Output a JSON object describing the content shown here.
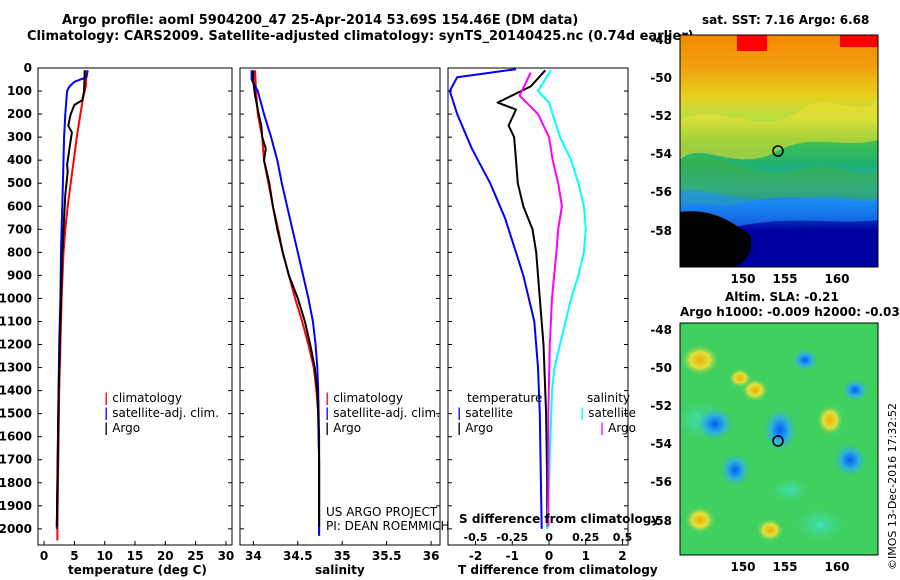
{
  "header": {
    "title_line1": "Argo profile: aoml 5904200_47 25-Apr-2014 53.69S 154.46E (DM data)",
    "title_line2": "Climatology: CARS2009. Satellite-adjusted climatology: synTS_20140425.nc (0.74d earlier)"
  },
  "colors": {
    "climatology": "#ff0000",
    "satellite": "#0000ff",
    "argo": "#000000",
    "sat_salinity": "#00ffff",
    "argo_salinity": "#ff00ff"
  },
  "watermark": "©IMOS 13-Dec-2016 17:32:52",
  "credits": {
    "line1": "US ARGO PROJECT",
    "line2": "PI: DEAN ROEMMICH"
  },
  "legends": {
    "temperature": [
      "climatology",
      "satellite-adj. clim.",
      "Argo"
    ],
    "salinity": [
      "climatology",
      "satellite-adj. clim.",
      "Argo"
    ],
    "diff_temperature": {
      "heading": "temperature",
      "items": [
        "satellite",
        "Argo"
      ]
    },
    "diff_salinity": {
      "heading": "salinity",
      "items": [
        "satellite",
        "Argo"
      ]
    }
  },
  "maps": {
    "sst": {
      "title": "sat. SST: 7.16 Argo: 6.68",
      "xticks": [
        "150",
        "155",
        "160"
      ],
      "yticks": [
        "-48",
        "-50",
        "-52",
        "-54",
        "-56",
        "-58"
      ]
    },
    "sla": {
      "title1": "Altim. SLA: -0.21",
      "title2": "Argo h1000: -0.009 h2000: -0.03",
      "xticks": [
        "150",
        "155",
        "160"
      ],
      "yticks": [
        "-48",
        "-50",
        "-52",
        "-54",
        "-56",
        "-58"
      ]
    }
  },
  "chart_data": [
    {
      "type": "line",
      "id": "temperature",
      "xlabel": "temperature (deg C)",
      "ylabel": "",
      "xlim": [
        -1,
        31
      ],
      "ylim": [
        2070,
        0
      ],
      "xticks": [
        0,
        5,
        10,
        15,
        20,
        25,
        30
      ],
      "yticks": [
        0,
        100,
        200,
        300,
        400,
        500,
        600,
        700,
        800,
        900,
        1000,
        1100,
        1200,
        1300,
        1400,
        1500,
        1600,
        1700,
        1800,
        1900,
        2000
      ],
      "series": [
        {
          "name": "climatology",
          "color": "#ff0000",
          "points": [
            [
              7.0,
              10
            ],
            [
              6.9,
              80
            ],
            [
              6.5,
              120
            ],
            [
              6.0,
              200
            ],
            [
              5.4,
              300
            ],
            [
              4.9,
              400
            ],
            [
              4.4,
              500
            ],
            [
              3.9,
              600
            ],
            [
              3.5,
              700
            ],
            [
              3.2,
              800
            ],
            [
              2.9,
              1000
            ],
            [
              2.7,
              1200
            ],
            [
              2.5,
              1400
            ],
            [
              2.4,
              1600
            ],
            [
              2.3,
              1800
            ],
            [
              2.2,
              2000
            ],
            [
              2.2,
              2050
            ]
          ]
        },
        {
          "name": "satellite-adj. clim.",
          "color": "#0000ff",
          "points": [
            [
              7.2,
              10
            ],
            [
              7.0,
              40
            ],
            [
              5.0,
              60
            ],
            [
              4.2,
              80
            ],
            [
              3.8,
              100
            ],
            [
              3.5,
              200
            ],
            [
              3.3,
              300
            ],
            [
              3.2,
              400
            ],
            [
              3.1,
              500
            ],
            [
              3.0,
              600
            ],
            [
              2.9,
              700
            ],
            [
              2.8,
              800
            ],
            [
              2.7,
              1000
            ],
            [
              2.5,
              1200
            ],
            [
              2.4,
              1400
            ],
            [
              2.3,
              1600
            ],
            [
              2.2,
              1800
            ],
            [
              2.1,
              2000
            ]
          ]
        },
        {
          "name": "Argo",
          "color": "#000000",
          "points": [
            [
              6.7,
              10
            ],
            [
              6.6,
              100
            ],
            [
              6.3,
              140
            ],
            [
              5.0,
              160
            ],
            [
              4.4,
              200
            ],
            [
              4.0,
              250
            ],
            [
              4.6,
              280
            ],
            [
              4.3,
              330
            ],
            [
              3.8,
              420
            ],
            [
              3.9,
              450
            ],
            [
              3.5,
              550
            ],
            [
              3.4,
              600
            ],
            [
              3.2,
              700
            ],
            [
              3.0,
              800
            ],
            [
              2.8,
              1000
            ],
            [
              2.6,
              1200
            ],
            [
              2.4,
              1400
            ],
            [
              2.3,
              1600
            ],
            [
              2.2,
              1800
            ],
            [
              2.1,
              1990
            ]
          ]
        }
      ]
    },
    {
      "type": "line",
      "id": "salinity",
      "xlabel": "salinity",
      "ylabel": "",
      "xlim": [
        33.85,
        36.1
      ],
      "ylim": [
        2070,
        0
      ],
      "xticks": [
        34,
        34.5,
        35,
        35.5,
        36
      ],
      "series": [
        {
          "name": "climatology",
          "color": "#ff0000",
          "points": [
            [
              34.02,
              10
            ],
            [
              34.03,
              100
            ],
            [
              34.05,
              200
            ],
            [
              34.1,
              300
            ],
            [
              34.12,
              400
            ],
            [
              34.17,
              500
            ],
            [
              34.22,
              600
            ],
            [
              34.28,
              700
            ],
            [
              34.33,
              800
            ],
            [
              34.4,
              900
            ],
            [
              34.47,
              1000
            ],
            [
              34.55,
              1100
            ],
            [
              34.62,
              1200
            ],
            [
              34.68,
              1300
            ],
            [
              34.71,
              1400
            ],
            [
              34.73,
              1500
            ],
            [
              34.74,
              1700
            ],
            [
              34.74,
              2030
            ]
          ]
        },
        {
          "name": "satellite-adj. clim.",
          "color": "#0000ff",
          "points": [
            [
              33.98,
              10
            ],
            [
              33.98,
              50
            ],
            [
              34.05,
              100
            ],
            [
              34.12,
              200
            ],
            [
              34.2,
              300
            ],
            [
              34.27,
              400
            ],
            [
              34.32,
              500
            ],
            [
              34.38,
              600
            ],
            [
              34.44,
              700
            ],
            [
              34.5,
              800
            ],
            [
              34.56,
              900
            ],
            [
              34.62,
              1000
            ],
            [
              34.67,
              1100
            ],
            [
              34.7,
              1200
            ],
            [
              34.72,
              1300
            ],
            [
              34.73,
              1400
            ],
            [
              34.74,
              1600
            ],
            [
              34.74,
              2030
            ]
          ]
        },
        {
          "name": "Argo",
          "color": "#000000",
          "points": [
            [
              34.0,
              10
            ],
            [
              34.0,
              60
            ],
            [
              34.02,
              120
            ],
            [
              34.06,
              200
            ],
            [
              34.09,
              250
            ],
            [
              34.1,
              300
            ],
            [
              34.14,
              350
            ],
            [
              34.12,
              400
            ],
            [
              34.18,
              500
            ],
            [
              34.22,
              600
            ],
            [
              34.27,
              700
            ],
            [
              34.33,
              800
            ],
            [
              34.4,
              900
            ],
            [
              34.5,
              1000
            ],
            [
              34.58,
              1100
            ],
            [
              34.64,
              1200
            ],
            [
              34.69,
              1300
            ],
            [
              34.72,
              1400
            ],
            [
              34.73,
              1500
            ],
            [
              34.74,
              1700
            ],
            [
              34.74,
              1990
            ]
          ]
        }
      ]
    },
    {
      "type": "line",
      "id": "difference",
      "xlabel": "T difference from climatology",
      "secondary_xlabel": "S difference from climatology",
      "xlim": [
        -2.75,
        2.15
      ],
      "ylim": [
        2070,
        0
      ],
      "xticks": [
        -2,
        -1,
        0,
        1,
        2
      ],
      "secondary_xticks": [
        {
          "label": "-0.5",
          "at": -2
        },
        {
          "label": "-0.25",
          "at": -1
        },
        {
          "label": "0",
          "at": 0
        },
        {
          "label": "0.25",
          "at": 1
        },
        {
          "label": "0.5",
          "at": 2
        }
      ],
      "series": [
        {
          "name": "temperature satellite",
          "color": "#0000ff",
          "points": [
            [
              -0.9,
              5
            ],
            [
              -2.5,
              40
            ],
            [
              -2.7,
              100
            ],
            [
              -2.5,
              200
            ],
            [
              -2.1,
              350
            ],
            [
              -1.6,
              500
            ],
            [
              -1.2,
              650
            ],
            [
              -0.9,
              800
            ],
            [
              -0.7,
              900
            ],
            [
              -0.55,
              1000
            ],
            [
              -0.4,
              1100
            ],
            [
              -0.3,
              1300
            ],
            [
              -0.25,
              1500
            ],
            [
              -0.22,
              1800
            ],
            [
              -0.2,
              2000
            ]
          ]
        },
        {
          "name": "temperature Argo",
          "color": "#000000",
          "points": [
            [
              -0.1,
              10
            ],
            [
              -0.5,
              80
            ],
            [
              -1.4,
              150
            ],
            [
              -0.9,
              180
            ],
            [
              -1.1,
              250
            ],
            [
              -0.95,
              300
            ],
            [
              -0.9,
              400
            ],
            [
              -0.85,
              500
            ],
            [
              -0.7,
              600
            ],
            [
              -0.45,
              700
            ],
            [
              -0.35,
              800
            ],
            [
              -0.25,
              1000
            ],
            [
              -0.15,
              1200
            ],
            [
              -0.08,
              1500
            ],
            [
              -0.05,
              1800
            ],
            [
              -0.05,
              1990
            ]
          ]
        },
        {
          "name": "salinity satellite",
          "color": "#00ffff",
          "points": [
            [
              0.05,
              10
            ],
            [
              -0.3,
              100
            ],
            [
              0.0,
              150
            ],
            [
              0.3,
              300
            ],
            [
              0.6,
              400
            ],
            [
              0.8,
              500
            ],
            [
              0.95,
              600
            ],
            [
              1.0,
              700
            ],
            [
              0.95,
              800
            ],
            [
              0.8,
              900
            ],
            [
              0.6,
              1000
            ],
            [
              0.45,
              1100
            ],
            [
              0.3,
              1200
            ],
            [
              0.15,
              1300
            ],
            [
              0.08,
              1400
            ],
            [
              0.04,
              1600
            ],
            [
              0.0,
              1800
            ],
            [
              -0.05,
              2000
            ]
          ]
        },
        {
          "name": "salinity Argo",
          "color": "#ff00ff",
          "points": [
            [
              -0.5,
              20
            ],
            [
              -0.8,
              120
            ],
            [
              -0.3,
              200
            ],
            [
              0.0,
              300
            ],
            [
              0.1,
              400
            ],
            [
              0.25,
              500
            ],
            [
              0.35,
              600
            ],
            [
              0.25,
              700
            ],
            [
              0.2,
              800
            ],
            [
              0.08,
              1000
            ],
            [
              0.02,
              1200
            ],
            [
              -0.02,
              1500
            ],
            [
              -0.02,
              1990
            ]
          ]
        }
      ]
    }
  ]
}
